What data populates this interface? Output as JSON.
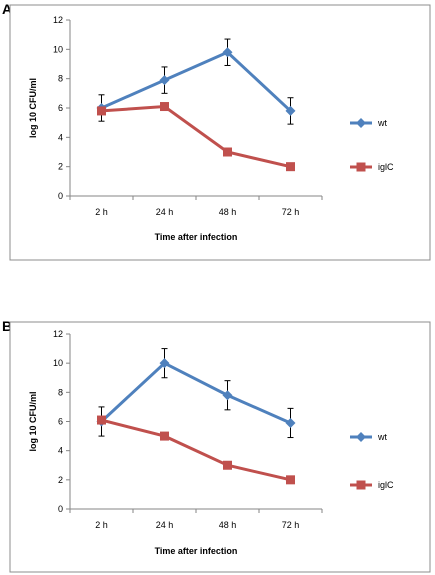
{
  "colors": {
    "wt": "#4f81bd",
    "iglC": "#c0504d",
    "frame": "#8c8c8c",
    "errorbar": "#000000"
  },
  "chart_data": [
    {
      "panel": "A",
      "type": "line",
      "categories": [
        "2 h",
        "24 h",
        "48 h",
        "72 h"
      ],
      "xlabel": "Time after infection",
      "ylabel": "log 10 CFU/ml",
      "ylim": [
        0,
        12
      ],
      "yticks": [
        0,
        2,
        4,
        6,
        8,
        10,
        12
      ],
      "grid": false,
      "legend": "right",
      "series": [
        {
          "name": "wt",
          "marker": "diamond",
          "values": [
            6.0,
            7.9,
            9.8,
            5.8
          ],
          "error": [
            0.9,
            0.9,
            0.9,
            0.9
          ]
        },
        {
          "name": "iglC",
          "marker": "square",
          "values": [
            5.8,
            6.1,
            3.0,
            2.0
          ],
          "error": [
            0,
            0,
            0,
            0
          ]
        }
      ]
    },
    {
      "panel": "B",
      "type": "line",
      "categories": [
        "2 h",
        "24 h",
        "48 h",
        "72 h"
      ],
      "xlabel": "Time after infection",
      "ylabel": "log 10 CFU/ml",
      "ylim": [
        0,
        12
      ],
      "yticks": [
        0,
        2,
        4,
        6,
        8,
        10,
        12
      ],
      "grid": false,
      "legend": "right",
      "series": [
        {
          "name": "wt",
          "marker": "diamond",
          "values": [
            6.0,
            10.0,
            7.8,
            5.9
          ],
          "error": [
            1.0,
            1.0,
            1.0,
            1.0
          ]
        },
        {
          "name": "iglC",
          "marker": "square",
          "values": [
            6.1,
            5.0,
            3.0,
            2.0
          ],
          "error": [
            0,
            0,
            0,
            0
          ]
        }
      ]
    }
  ]
}
